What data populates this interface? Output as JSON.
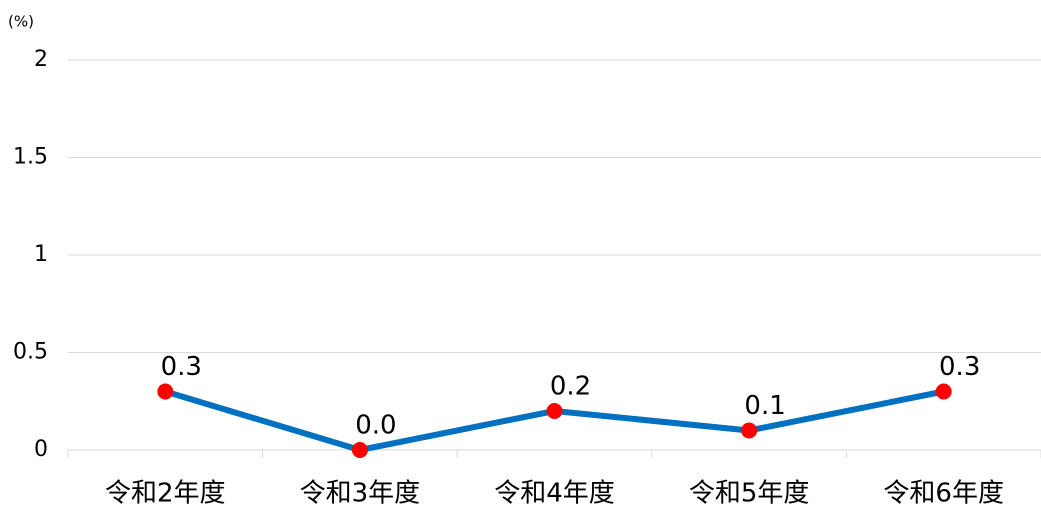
{
  "chart_data": {
    "type": "line",
    "unit_label": "(%)",
    "categories": [
      "令和2年度",
      "令和3年度",
      "令和4年度",
      "令和5年度",
      "令和6年度"
    ],
    "series": [
      {
        "color": "#0070c0",
        "marker_color": "#ff0000",
        "values": [
          0.3,
          0,
          0.2,
          0.1,
          0.3
        ],
        "value_labels": [
          "0.3",
          "0.0",
          "0.2",
          "0.1",
          "0.3"
        ]
      }
    ],
    "ylim": [
      0,
      2
    ],
    "yticks": [
      0,
      0.5,
      1,
      1.5,
      2
    ],
    "grid": true
  }
}
